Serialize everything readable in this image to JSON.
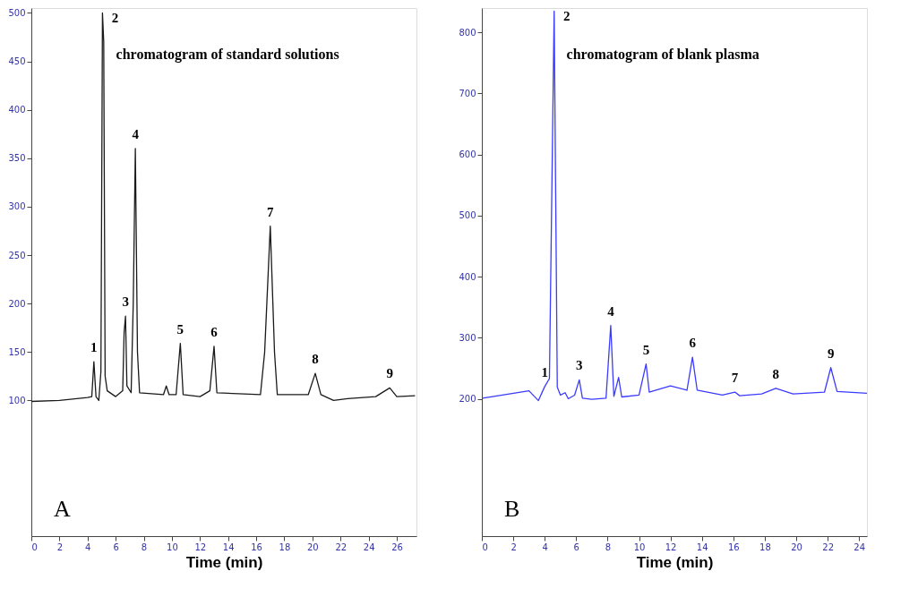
{
  "chart_data": [
    {
      "type": "line",
      "title": "chromatogram of standard solutions",
      "xlabel": "Time (min)",
      "xlim": [
        0,
        27.4
      ],
      "xticks": [
        0,
        2,
        4,
        6,
        8,
        10,
        12,
        14,
        16,
        18,
        20,
        22,
        24,
        26
      ],
      "ylim": [
        -40,
        505
      ],
      "yticks": [
        100,
        150,
        200,
        250,
        300,
        350,
        400,
        450,
        500
      ],
      "grid": false,
      "series": [
        {
          "color": "#1a1a1a",
          "x": [
            0,
            2,
            4,
            4.3,
            4.45,
            4.6,
            4.8,
            4.95,
            5.06,
            5.15,
            5.25,
            5.4,
            6.0,
            6.5,
            6.6,
            6.7,
            6.8,
            7.1,
            7.25,
            7.4,
            7.55,
            7.7,
            9.4,
            9.6,
            9.8,
            10.3,
            10.6,
            10.8,
            12.0,
            12.7,
            13.0,
            13.2,
            16.3,
            16.6,
            17.0,
            17.3,
            17.5,
            19.7,
            20.2,
            20.6,
            21.5,
            22.5,
            24.5,
            25.5,
            26.0,
            27.3
          ],
          "values": [
            99,
            100,
            103,
            104,
            140,
            104,
            100,
            130,
            500,
            470,
            125,
            110,
            104,
            110,
            170,
            187,
            115,
            108,
            200,
            360,
            150,
            108,
            106,
            115,
            106,
            106,
            159,
            106,
            104,
            110,
            156,
            108,
            106,
            150,
            280,
            150,
            106,
            106,
            128,
            106,
            100,
            102,
            104,
            113,
            104,
            105
          ]
        }
      ],
      "annotations": [
        {
          "text": "1",
          "x": 4.45,
          "y": 140
        },
        {
          "text": "2",
          "x": 5.06,
          "y": 500
        },
        {
          "text": "3",
          "x": 6.7,
          "y": 187
        },
        {
          "text": "4",
          "x": 7.4,
          "y": 360
        },
        {
          "text": "5",
          "x": 10.6,
          "y": 159
        },
        {
          "text": "6",
          "x": 13.0,
          "y": 156
        },
        {
          "text": "7",
          "x": 17.0,
          "y": 280
        },
        {
          "text": "8",
          "x": 20.2,
          "y": 128
        },
        {
          "text": "9",
          "x": 25.5,
          "y": 113
        },
        "A"
      ]
    },
    {
      "type": "line",
      "title": "chromatogram of blank plasma",
      "xlabel": "Time (min)",
      "xlim": [
        0,
        24.5
      ],
      "xticks": [
        0,
        2,
        4,
        6,
        8,
        10,
        12,
        14,
        16,
        18,
        20,
        22,
        24
      ],
      "ylim": [
        -25,
        840
      ],
      "yticks": [
        200,
        300,
        400,
        500,
        600,
        700,
        800
      ],
      "grid": false,
      "series": [
        {
          "color": "#3b3bff",
          "x": [
            0.05,
            3.0,
            3.6,
            4.0,
            4.3,
            4.6,
            4.8,
            5.0,
            5.3,
            5.5,
            5.9,
            6.2,
            6.4,
            7.0,
            7.9,
            8.2,
            8.4,
            8.7,
            8.9,
            10.0,
            10.45,
            10.65,
            12.0,
            13.05,
            13.4,
            13.7,
            15.3,
            16.1,
            16.4,
            17.8,
            18.7,
            19.8,
            21.8,
            22.2,
            22.6,
            24.5
          ],
          "values": [
            201,
            213,
            197,
            220,
            233,
            835,
            219,
            206,
            210,
            200,
            206,
            231,
            201,
            199,
            201,
            320,
            204,
            235,
            203,
            206,
            257,
            211,
            221,
            214,
            268,
            214,
            206,
            211,
            205,
            208,
            217,
            208,
            211,
            251,
            212,
            209
          ]
        }
      ],
      "annotations": [
        {
          "text": "1",
          "x": 4.0,
          "y": 220
        },
        {
          "text": "2",
          "x": 4.6,
          "y": 835
        },
        {
          "text": "3",
          "x": 6.2,
          "y": 231
        },
        {
          "text": "4",
          "x": 8.2,
          "y": 320
        },
        {
          "text": "5",
          "x": 10.45,
          "y": 257
        },
        {
          "text": "6",
          "x": 13.4,
          "y": 268
        },
        {
          "text": "7",
          "x": 16.1,
          "y": 211
        },
        {
          "text": "8",
          "x": 18.7,
          "y": 217
        },
        {
          "text": "9",
          "x": 22.2,
          "y": 251
        },
        "B"
      ]
    }
  ]
}
